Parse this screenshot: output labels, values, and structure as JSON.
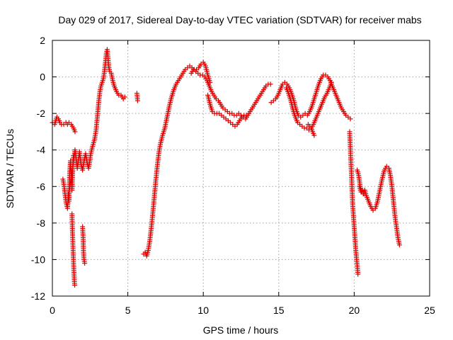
{
  "chart_data": {
    "type": "scatter",
    "title": "Day 029 of 2017, Sidereal Day-to-day VTEC variation (SDTVAR) for receiver mabs",
    "xlabel": "GPS time / hours",
    "ylabel": "SDTVAR / TECUs",
    "xlim": [
      0,
      25
    ],
    "ylim": [
      -12,
      2
    ],
    "xticks": [
      0,
      5,
      10,
      15,
      20,
      25
    ],
    "yticks": [
      -12,
      -10,
      -8,
      -6,
      -4,
      -2,
      0,
      2
    ],
    "xtick_labels": [
      "0",
      "5",
      "10",
      "15",
      "20",
      "25"
    ],
    "ytick_labels": [
      "-12",
      "-10",
      "-8",
      "-6",
      "-4",
      "-2",
      "0",
      "2"
    ],
    "grid": true,
    "marker": "+",
    "color": "#e00000",
    "series": [
      {
        "name": "SDTVAR",
        "segments": [
          {
            "x": [
              0.0,
              0.15,
              0.3,
              0.4,
              0.5,
              0.6,
              0.75,
              0.9,
              1.0,
              1.1,
              1.25,
              1.4,
              1.5
            ],
            "y": [
              -2.5,
              -2.6,
              -2.2,
              -2.3,
              -2.5,
              -2.6,
              -2.6,
              -2.5,
              -2.6,
              -2.5,
              -2.6,
              -2.8,
              -3.0
            ]
          },
          {
            "x": [
              0.7,
              0.78,
              0.85,
              0.92,
              1.0,
              1.05,
              1.12,
              1.2,
              1.28,
              1.35,
              1.42,
              1.5,
              1.58,
              1.65,
              1.72,
              1.8,
              1.9,
              2.0,
              2.1,
              2.2,
              2.3,
              2.4,
              2.5
            ],
            "y": [
              -5.6,
              -6.0,
              -6.5,
              -6.9,
              -7.2,
              -6.6,
              -6.2,
              -5.8,
              -5.3,
              -4.9,
              -4.5,
              -4.0,
              -4.5,
              -5.0,
              -4.6,
              -4.1,
              -4.8,
              -5.1,
              -4.6,
              -4.2,
              -4.7,
              -5.0,
              -4.5
            ]
          },
          {
            "x": [
              1.05,
              1.1,
              1.15,
              1.2,
              1.25,
              1.3,
              1.35,
              1.4
            ],
            "y": [
              -6.4,
              -6.8,
              -5.2,
              -4.6,
              -5.5,
              -6.2,
              -5.0,
              -4.3
            ]
          },
          {
            "x": [
              1.3,
              1.32,
              1.34,
              1.36,
              1.38,
              1.4,
              1.42,
              1.44,
              1.46,
              1.48
            ],
            "y": [
              -7.5,
              -8.2,
              -8.7,
              -9.2,
              -9.7,
              -10.1,
              -10.5,
              -10.9,
              -11.2,
              -11.4
            ]
          },
          {
            "x": [
              2.0,
              2.02,
              2.04,
              2.06,
              2.08,
              2.1,
              2.12,
              2.14
            ],
            "y": [
              -8.2,
              -8.5,
              -8.8,
              -9.5,
              -9.8,
              -10.0,
              -10.1,
              -10.2
            ]
          },
          {
            "x": [
              2.5,
              2.6,
              2.7,
              2.8,
              2.9,
              3.0,
              3.08,
              3.15,
              3.22,
              3.3,
              3.38,
              3.45,
              3.52,
              3.58,
              3.63,
              3.68,
              3.73,
              3.8,
              3.9,
              4.0,
              4.1,
              4.25,
              4.4,
              4.55,
              4.7,
              4.8
            ],
            "y": [
              -4.4,
              -4.0,
              -3.7,
              -3.4,
              -2.9,
              -2.0,
              -1.3,
              -0.8,
              -0.5,
              -0.3,
              -0.1,
              0.3,
              0.8,
              1.3,
              1.5,
              1.1,
              0.6,
              0.3,
              0.2,
              -0.2,
              -0.5,
              -0.8,
              -1.0,
              -1.0,
              -1.2,
              -1.1
            ]
          },
          {
            "x": [
              5.6,
              5.65
            ],
            "y": [
              -0.9,
              -1.3
            ]
          },
          {
            "x": [
              6.05,
              6.15,
              6.25,
              6.35,
              6.45,
              6.55,
              6.65,
              6.75,
              6.85,
              6.95,
              7.05,
              7.15,
              7.3,
              7.45,
              7.6,
              7.75,
              7.9,
              8.05,
              8.2,
              8.35,
              8.5,
              8.65,
              8.8,
              8.95,
              9.1,
              9.25,
              9.4,
              9.55,
              9.7,
              9.85,
              10.0,
              10.15,
              10.3,
              10.45
            ],
            "y": [
              -9.7,
              -9.6,
              -9.8,
              -9.5,
              -9.0,
              -8.3,
              -7.5,
              -6.6,
              -5.7,
              -4.9,
              -4.2,
              -3.7,
              -3.2,
              -2.8,
              -2.2,
              -1.6,
              -1.1,
              -0.7,
              -0.4,
              -0.2,
              0.0,
              0.2,
              0.4,
              0.5,
              0.6,
              0.5,
              0.4,
              0.4,
              0.5,
              0.7,
              0.8,
              0.6,
              0.1,
              -0.3
            ]
          },
          {
            "x": [
              9.2,
              9.35,
              9.5,
              9.65,
              9.8,
              9.95,
              10.1,
              10.25,
              10.4,
              10.55,
              10.7,
              10.85,
              11.0,
              11.15,
              11.3,
              11.45,
              11.6,
              11.75,
              11.9,
              12.05,
              12.2,
              12.35,
              12.5,
              12.65,
              12.8,
              12.95,
              13.1,
              13.25,
              13.4,
              13.55,
              13.7,
              13.85,
              14.0,
              14.15,
              14.3,
              14.45
            ],
            "y": [
              0.2,
              0.4,
              0.3,
              0.2,
              0.1,
              0.1,
              0.0,
              -0.2,
              -0.5,
              -0.8,
              -1.0,
              -1.2,
              -1.3,
              -1.5,
              -1.7,
              -1.8,
              -1.9,
              -2.0,
              -2.0,
              -2.1,
              -2.1,
              -2.0,
              -2.1,
              -2.2,
              -2.3,
              -2.1,
              -1.9,
              -1.7,
              -1.5,
              -1.3,
              -1.1,
              -0.9,
              -0.7,
              -0.5,
              -0.4,
              -0.4
            ]
          },
          {
            "x": [
              10.3,
              10.45,
              10.6,
              10.75,
              10.9,
              11.05,
              11.2,
              11.35,
              11.5,
              11.65,
              11.8,
              11.95,
              12.1,
              12.25,
              12.4,
              12.55,
              12.7,
              12.85
            ],
            "y": [
              -1.0,
              -1.5,
              -1.9,
              -2.0,
              -2.0,
              -2.0,
              -2.1,
              -2.2,
              -2.3,
              -2.4,
              -2.5,
              -2.6,
              -2.7,
              -2.6,
              -2.4,
              -2.2,
              -2.1,
              -2.1
            ]
          },
          {
            "x": [
              14.5,
              14.65,
              14.8,
              14.95,
              15.1,
              15.25,
              15.4,
              15.55,
              15.7,
              15.85,
              16.0,
              16.15,
              16.3,
              16.45,
              16.6,
              16.75,
              16.9,
              17.05,
              17.2,
              17.35,
              17.5,
              17.65,
              17.8,
              17.95,
              18.1,
              18.25,
              18.4,
              18.55,
              18.7,
              18.85,
              19.0,
              19.15,
              19.3,
              19.45,
              19.6,
              19.75
            ],
            "y": [
              -1.4,
              -1.3,
              -1.2,
              -1.0,
              -0.7,
              -0.4,
              -0.3,
              -0.4,
              -0.6,
              -0.9,
              -1.3,
              -1.8,
              -2.1,
              -2.2,
              -2.1,
              -2.0,
              -2.1,
              -1.9,
              -1.6,
              -1.2,
              -0.8,
              -0.4,
              -0.1,
              0.1,
              0.1,
              0.0,
              -0.2,
              -0.5,
              -0.8,
              -1.1,
              -1.4,
              -1.7,
              -1.9,
              -2.1,
              -2.2,
              -2.3
            ]
          },
          {
            "x": [
              15.5,
              15.65,
              15.8,
              15.95,
              16.1,
              16.25,
              16.4,
              16.55,
              16.7,
              16.85,
              17.0,
              17.15,
              17.3,
              17.45,
              17.6,
              17.75,
              17.9,
              18.05,
              18.2,
              18.35,
              18.5
            ],
            "y": [
              -0.6,
              -0.9,
              -1.3,
              -1.8,
              -2.2,
              -2.5,
              -2.6,
              -2.7,
              -2.8,
              -2.8,
              -2.9,
              -2.8,
              -2.6,
              -2.3,
              -2.0,
              -1.7,
              -1.4,
              -1.1,
              -0.9,
              -0.6,
              -0.3
            ]
          },
          {
            "x": [
              16.95,
              17.05,
              17.15,
              17.25,
              17.35
            ],
            "y": [
              -2.6,
              -2.7,
              -2.8,
              -3.0,
              -3.2
            ]
          },
          {
            "x": [
              19.7,
              19.75,
              19.8,
              19.85,
              19.9,
              19.95,
              20.0,
              20.05,
              20.1,
              20.15,
              20.2,
              20.25
            ],
            "y": [
              -3.0,
              -4.0,
              -5.0,
              -6.0,
              -7.0,
              -7.6,
              -8.2,
              -8.8,
              -9.4,
              -9.9,
              -10.3,
              -10.8
            ]
          },
          {
            "x": [
              20.2,
              20.3,
              20.4,
              20.5,
              20.6,
              20.7,
              20.8,
              20.95,
              21.1,
              21.25,
              21.4,
              21.55,
              21.7,
              21.85,
              22.0,
              22.15,
              22.3,
              22.4,
              22.5,
              22.6,
              22.7,
              22.8,
              22.9,
              23.0
            ],
            "y": [
              -5.1,
              -5.4,
              -6.0,
              -6.3,
              -6.4,
              -6.2,
              -6.5,
              -6.8,
              -7.1,
              -7.3,
              -7.2,
              -6.8,
              -6.2,
              -5.6,
              -5.1,
              -4.9,
              -5.0,
              -5.4,
              -6.0,
              -6.8,
              -7.6,
              -8.2,
              -8.8,
              -9.2
            ]
          },
          {
            "x": [
              20.35,
              20.45,
              20.55,
              20.65
            ],
            "y": [
              -6.0,
              -6.3,
              -6.2,
              -6.4
            ]
          }
        ]
      }
    ]
  }
}
